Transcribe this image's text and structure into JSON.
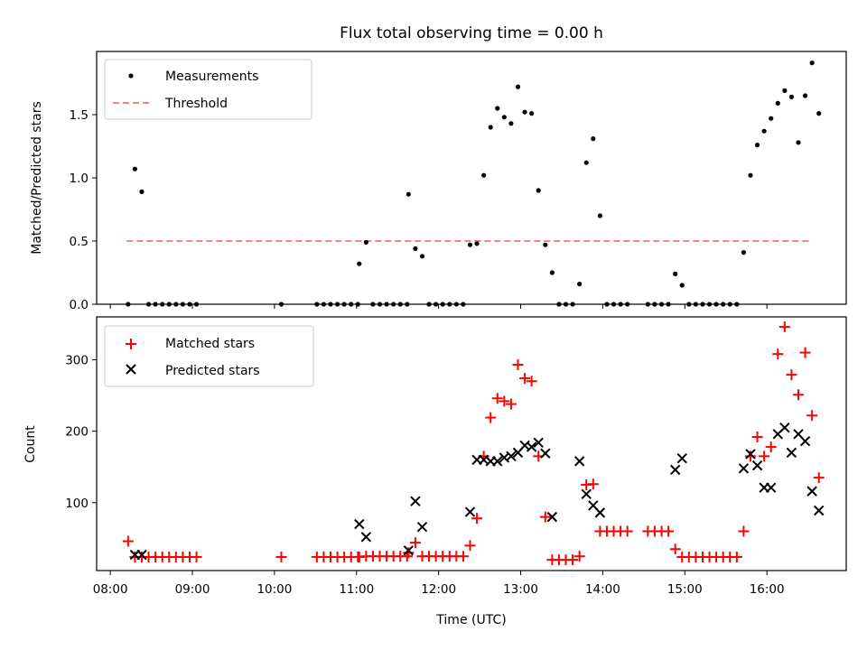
{
  "title": "Flux total observing time = 0.00 h",
  "top": {
    "ylabel": "Matched/Predicted stars",
    "ylim": [
      0,
      2.0
    ],
    "yticks": [
      "0.0",
      "0.5",
      "1.0",
      "1.5"
    ],
    "legend": {
      "measurements": "Measurements",
      "threshold": "Threshold"
    }
  },
  "bottom": {
    "xlabel": "Time (UTC)",
    "ylabel": "Count",
    "ylim": [
      5,
      360
    ],
    "yticks": [
      "100",
      "200",
      "300"
    ],
    "legend": {
      "matched": "Matched stars",
      "predicted": "Predicted stars"
    }
  },
  "colors": {
    "measurements": "#000000",
    "threshold": "#ff8080",
    "matched": "#ff0000",
    "predicted": "#000000"
  },
  "chart_data": [
    {
      "type": "scatter",
      "title": "Flux total observing time = 0.00 h",
      "xlabel": "",
      "ylabel": "Matched/Predicted stars",
      "xlim": [
        "07:50",
        "16:58"
      ],
      "ylim": [
        0,
        2.0
      ],
      "xticks": [
        "08:00",
        "09:00",
        "10:00",
        "11:00",
        "12:00",
        "13:00",
        "14:00",
        "15:00",
        "16:00"
      ],
      "threshold": {
        "name": "Threshold",
        "y": 0.5,
        "x_range": [
          "08:12",
          "16:32"
        ],
        "style": "dashed"
      },
      "series": [
        {
          "name": "Measurements",
          "points": [
            [
              "08:13",
              0.0
            ],
            [
              "08:18",
              1.07
            ],
            [
              "08:23",
              0.89
            ],
            [
              "08:28",
              0.0
            ],
            [
              "08:33",
              0.0
            ],
            [
              "08:38",
              0.0
            ],
            [
              "08:43",
              0.0
            ],
            [
              "08:48",
              0.0
            ],
            [
              "08:53",
              0.0
            ],
            [
              "08:58",
              0.0
            ],
            [
              "09:03",
              0.0
            ],
            [
              "10:05",
              0.0
            ],
            [
              "10:31",
              0.0
            ],
            [
              "10:36",
              0.0
            ],
            [
              "10:41",
              0.0
            ],
            [
              "10:46",
              0.0
            ],
            [
              "10:51",
              0.0
            ],
            [
              "10:56",
              0.0
            ],
            [
              "11:01",
              0.0
            ],
            [
              "11:02",
              0.32
            ],
            [
              "11:07",
              0.49
            ],
            [
              "11:12",
              0.0
            ],
            [
              "11:17",
              0.0
            ],
            [
              "11:22",
              0.0
            ],
            [
              "11:27",
              0.0
            ],
            [
              "11:32",
              0.0
            ],
            [
              "11:37",
              0.0
            ],
            [
              "11:38",
              0.87
            ],
            [
              "11:43",
              0.44
            ],
            [
              "11:48",
              0.38
            ],
            [
              "11:53",
              0.0
            ],
            [
              "11:58",
              0.0
            ],
            [
              "12:03",
              0.0
            ],
            [
              "12:08",
              0.0
            ],
            [
              "12:13",
              0.0
            ],
            [
              "12:18",
              0.0
            ],
            [
              "12:23",
              0.47
            ],
            [
              "12:28",
              0.48
            ],
            [
              "12:33",
              1.02
            ],
            [
              "12:38",
              1.4
            ],
            [
              "12:43",
              1.55
            ],
            [
              "12:48",
              1.48
            ],
            [
              "12:53",
              1.43
            ],
            [
              "12:58",
              1.72
            ],
            [
              "13:03",
              1.52
            ],
            [
              "13:08",
              1.51
            ],
            [
              "13:13",
              0.9
            ],
            [
              "13:18",
              0.47
            ],
            [
              "13:23",
              0.25
            ],
            [
              "13:28",
              0.0
            ],
            [
              "13:33",
              0.0
            ],
            [
              "13:38",
              0.0
            ],
            [
              "13:43",
              0.16
            ],
            [
              "13:48",
              1.12
            ],
            [
              "13:53",
              1.31
            ],
            [
              "13:58",
              0.7
            ],
            [
              "14:03",
              0.0
            ],
            [
              "14:08",
              0.0
            ],
            [
              "14:13",
              0.0
            ],
            [
              "14:18",
              0.0
            ],
            [
              "14:33",
              0.0
            ],
            [
              "14:38",
              0.0
            ],
            [
              "14:43",
              0.0
            ],
            [
              "14:48",
              0.0
            ],
            [
              "14:53",
              0.24
            ],
            [
              "14:58",
              0.15
            ],
            [
              "15:03",
              0.0
            ],
            [
              "15:08",
              0.0
            ],
            [
              "15:13",
              0.0
            ],
            [
              "15:18",
              0.0
            ],
            [
              "15:23",
              0.0
            ],
            [
              "15:28",
              0.0
            ],
            [
              "15:33",
              0.0
            ],
            [
              "15:38",
              0.0
            ],
            [
              "15:43",
              0.41
            ],
            [
              "15:48",
              1.02
            ],
            [
              "15:53",
              1.26
            ],
            [
              "15:58",
              1.37
            ],
            [
              "16:03",
              1.47
            ],
            [
              "16:08",
              1.59
            ],
            [
              "16:13",
              1.69
            ],
            [
              "16:18",
              1.64
            ],
            [
              "16:23",
              1.28
            ],
            [
              "16:28",
              1.65
            ],
            [
              "16:33",
              1.91
            ],
            [
              "16:38",
              1.51
            ]
          ]
        }
      ]
    },
    {
      "type": "scatter",
      "xlabel": "Time (UTC)",
      "ylabel": "Count",
      "xlim": [
        "07:50",
        "16:58"
      ],
      "ylim": [
        5,
        360
      ],
      "xticks": [
        "08:00",
        "09:00",
        "10:00",
        "11:00",
        "12:00",
        "13:00",
        "14:00",
        "15:00",
        "16:00"
      ],
      "series": [
        {
          "name": "Matched stars",
          "marker": "+",
          "points": [
            [
              "08:13",
              46
            ],
            [
              "08:18",
              24
            ],
            [
              "08:23",
              24
            ],
            [
              "08:28",
              24
            ],
            [
              "08:33",
              24
            ],
            [
              "08:38",
              24
            ],
            [
              "08:43",
              24
            ],
            [
              "08:48",
              24
            ],
            [
              "08:53",
              24
            ],
            [
              "08:58",
              24
            ],
            [
              "09:03",
              24
            ],
            [
              "10:05",
              24
            ],
            [
              "10:31",
              24
            ],
            [
              "10:36",
              24
            ],
            [
              "10:41",
              24
            ],
            [
              "10:46",
              24
            ],
            [
              "10:51",
              24
            ],
            [
              "10:56",
              24
            ],
            [
              "11:01",
              24
            ],
            [
              "11:02",
              24
            ],
            [
              "11:07",
              25
            ],
            [
              "11:12",
              25
            ],
            [
              "11:17",
              25
            ],
            [
              "11:22",
              25
            ],
            [
              "11:27",
              25
            ],
            [
              "11:32",
              25
            ],
            [
              "11:37",
              25
            ],
            [
              "11:38",
              30
            ],
            [
              "11:43",
              44
            ],
            [
              "11:48",
              25
            ],
            [
              "11:53",
              25
            ],
            [
              "11:58",
              25
            ],
            [
              "12:03",
              25
            ],
            [
              "12:08",
              25
            ],
            [
              "12:13",
              25
            ],
            [
              "12:18",
              25
            ],
            [
              "12:23",
              40
            ],
            [
              "12:28",
              78
            ],
            [
              "12:33",
              165
            ],
            [
              "12:38",
              219
            ],
            [
              "12:43",
              246
            ],
            [
              "12:48",
              242
            ],
            [
              "12:53",
              238
            ],
            [
              "12:58",
              293
            ],
            [
              "13:03",
              274
            ],
            [
              "13:08",
              270
            ],
            [
              "13:13",
              165
            ],
            [
              "13:18",
              80
            ],
            [
              "13:23",
              20
            ],
            [
              "13:28",
              20
            ],
            [
              "13:33",
              20
            ],
            [
              "13:38",
              20
            ],
            [
              "13:43",
              25
            ],
            [
              "13:48",
              125
            ],
            [
              "13:53",
              126
            ],
            [
              "13:58",
              60
            ],
            [
              "14:03",
              60
            ],
            [
              "14:08",
              60
            ],
            [
              "14:13",
              60
            ],
            [
              "14:18",
              60
            ],
            [
              "14:33",
              60
            ],
            [
              "14:38",
              60
            ],
            [
              "14:43",
              60
            ],
            [
              "14:48",
              60
            ],
            [
              "14:53",
              35
            ],
            [
              "14:58",
              24
            ],
            [
              "15:03",
              24
            ],
            [
              "15:08",
              24
            ],
            [
              "15:13",
              24
            ],
            [
              "15:18",
              24
            ],
            [
              "15:23",
              24
            ],
            [
              "15:28",
              24
            ],
            [
              "15:33",
              24
            ],
            [
              "15:38",
              24
            ],
            [
              "15:43",
              60
            ],
            [
              "15:48",
              165
            ],
            [
              "15:53",
              192
            ],
            [
              "15:58",
              165
            ],
            [
              "16:03",
              178
            ],
            [
              "16:08",
              308
            ],
            [
              "16:13",
              346
            ],
            [
              "16:18",
              279
            ],
            [
              "16:23",
              251
            ],
            [
              "16:28",
              310
            ],
            [
              "16:33",
              222
            ],
            [
              "16:38",
              135
            ]
          ]
        },
        {
          "name": "Predicted stars",
          "marker": "x",
          "points": [
            [
              "08:18",
              27
            ],
            [
              "08:23",
              27
            ],
            [
              "11:02",
              70
            ],
            [
              "11:07",
              52
            ],
            [
              "11:38",
              33
            ],
            [
              "11:43",
              102
            ],
            [
              "11:48",
              66
            ],
            [
              "12:23",
              87
            ],
            [
              "12:28",
              160
            ],
            [
              "12:33",
              160
            ],
            [
              "12:38",
              158
            ],
            [
              "12:43",
              158
            ],
            [
              "12:48",
              163
            ],
            [
              "12:53",
              165
            ],
            [
              "12:58",
              170
            ],
            [
              "13:03",
              180
            ],
            [
              "13:08",
              178
            ],
            [
              "13:13",
              184
            ],
            [
              "13:18",
              169
            ],
            [
              "13:23",
              80
            ],
            [
              "13:43",
              158
            ],
            [
              "13:48",
              112
            ],
            [
              "13:53",
              96
            ],
            [
              "13:58",
              86
            ],
            [
              "14:53",
              146
            ],
            [
              "14:58",
              162
            ],
            [
              "15:43",
              148
            ],
            [
              "15:48",
              168
            ],
            [
              "15:53",
              152
            ],
            [
              "15:58",
              121
            ],
            [
              "16:03",
              121
            ],
            [
              "16:08",
              196
            ],
            [
              "16:13",
              205
            ],
            [
              "16:18",
              170
            ],
            [
              "16:23",
              196
            ],
            [
              "16:28",
              186
            ],
            [
              "16:33",
              116
            ],
            [
              "16:38",
              89
            ]
          ]
        }
      ]
    }
  ]
}
